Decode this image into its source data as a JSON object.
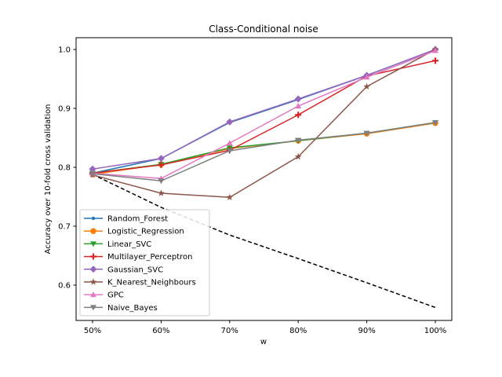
{
  "chart_data": {
    "type": "line",
    "title": "Class-Conditional noise",
    "xlabel": "w",
    "ylabel": "Accuracy over 10-fold cross validation",
    "categories": [
      "50%",
      "60%",
      "70%",
      "80%",
      "90%",
      "100%"
    ],
    "ylim": [
      0.54,
      1.02
    ],
    "yticks": [
      "0.6",
      "0.7",
      "0.8",
      "0.9",
      "1.0"
    ],
    "legend_position": "lower-left",
    "grid": false,
    "series": [
      {
        "name": "Random_Forest",
        "color": "#1f77b4",
        "marker": "point",
        "values": [
          0.79,
          0.815,
          0.876,
          0.915,
          0.956,
          1.0
        ]
      },
      {
        "name": "Logistic_Regression",
        "color": "#ff7f0e",
        "marker": "circle",
        "values": [
          0.788,
          0.805,
          0.832,
          0.845,
          0.857,
          0.875
        ]
      },
      {
        "name": "Linear_SVC",
        "color": "#2ca02c",
        "marker": "triangle-down",
        "values": [
          0.79,
          0.805,
          0.833,
          0.845,
          0.858,
          0.876
        ]
      },
      {
        "name": "Multilayer_Perceptron",
        "color": "#d62728",
        "marker": "plus",
        "values": [
          0.79,
          0.804,
          0.829,
          0.889,
          0.955,
          0.981
        ]
      },
      {
        "name": "Gaussian_SVC",
        "color": "#9467bd",
        "marker": "diamond",
        "values": [
          0.797,
          0.815,
          0.877,
          0.916,
          0.956,
          1.0
        ]
      },
      {
        "name": "K_Nearest_Neighbours",
        "color": "#8c564b",
        "marker": "star",
        "values": [
          0.787,
          0.756,
          0.749,
          0.818,
          0.937,
          1.0
        ]
      },
      {
        "name": "GPC",
        "color": "#e377c2",
        "marker": "triangle-up",
        "values": [
          0.79,
          0.781,
          0.841,
          0.904,
          0.953,
          0.998
        ]
      },
      {
        "name": "Naive_Bayes",
        "color": "#7f7f7f",
        "marker": "triangle-down",
        "values": [
          0.789,
          0.777,
          0.828,
          0.846,
          0.858,
          0.876
        ]
      }
    ],
    "reference_line": {
      "color": "#000000",
      "style": "dashed",
      "values": [
        0.788,
        0.732,
        0.685,
        0.645,
        0.604,
        0.562
      ]
    }
  }
}
